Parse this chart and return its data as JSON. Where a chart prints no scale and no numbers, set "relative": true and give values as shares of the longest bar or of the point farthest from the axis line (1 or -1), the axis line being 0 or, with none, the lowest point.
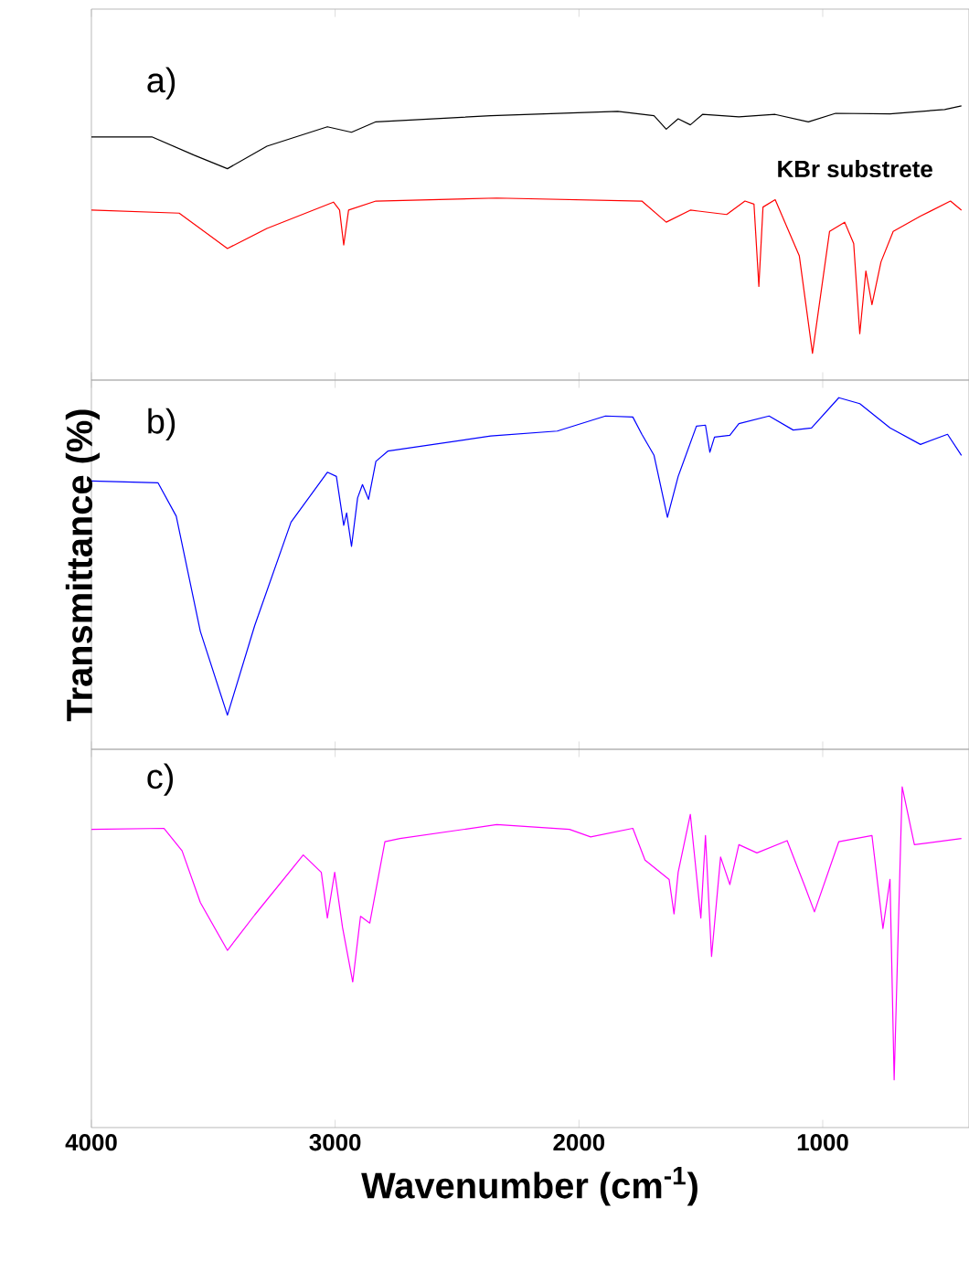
{
  "chart_data": [
    {
      "type": "line",
      "relative": true,
      "xlim": [
        4000,
        400
      ],
      "xticks": [
        4000,
        3000,
        2000,
        1000
      ],
      "tick_labels": false,
      "annotations": [
        "a)"
      ],
      "series": [
        {
          "name": "KBr substrete",
          "color": "#000000",
          "x": [
            4000,
            3752,
            3578,
            3442,
            3280,
            3032,
            2933,
            2833,
            2362,
            1841,
            1692,
            1642,
            1593,
            1543,
            1493,
            1344,
            1195,
            1059,
            947,
            724,
            500,
            431
          ],
          "values": [
            0.887,
            0.887,
            0.82,
            0.771,
            0.853,
            0.924,
            0.904,
            0.942,
            0.964,
            0.98,
            0.964,
            0.915,
            0.953,
            0.931,
            0.969,
            0.96,
            0.969,
            0.942,
            0.973,
            0.971,
            0.987,
            1.0
          ]
        },
        {
          "color": "#ff0000",
          "x": [
            4000,
            3640,
            3442,
            3280,
            3007,
            2982,
            2965,
            2945,
            2833,
            2337,
            1742,
            1642,
            1543,
            1394,
            1319,
            1282,
            1262,
            1245,
            1195,
            1096,
            1042,
            972,
            910,
            873,
            848,
            823,
            798,
            761,
            711,
            599,
            476,
            431
          ],
          "values": [
            0.62,
            0.609,
            0.48,
            0.553,
            0.649,
            0.62,
            0.493,
            0.62,
            0.653,
            0.664,
            0.653,
            0.576,
            0.62,
            0.604,
            0.653,
            0.642,
            0.342,
            0.631,
            0.658,
            0.453,
            0.098,
            0.542,
            0.576,
            0.498,
            0.169,
            0.398,
            0.275,
            0.431,
            0.542,
            0.598,
            0.653,
            0.62
          ]
        }
      ]
    },
    {
      "type": "line",
      "relative": true,
      "xlim": [
        4000,
        400
      ],
      "xticks": [
        4000,
        3000,
        2000,
        1000
      ],
      "tick_labels": false,
      "ylabel": "Transmittance (%)",
      "annotations": [
        "b)"
      ],
      "series": [
        {
          "color": "#0000ff",
          "x": [
            4000,
            3727,
            3652,
            3553,
            3442,
            3330,
            3181,
            3032,
            2995,
            2965,
            2953,
            2933,
            2908,
            2888,
            2863,
            2833,
            2784,
            2362,
            2089,
            1891,
            1779,
            1742,
            1692,
            1637,
            1593,
            1518,
            1481,
            1463,
            1444,
            1381,
            1344,
            1220,
            1121,
            1046,
            934,
            848,
            724,
            599,
            488,
            431
          ],
          "values": [
            0.763,
            0.758,
            0.663,
            0.335,
            0.097,
            0.352,
            0.646,
            0.788,
            0.776,
            0.637,
            0.672,
            0.577,
            0.715,
            0.753,
            0.711,
            0.819,
            0.848,
            0.891,
            0.905,
            0.948,
            0.945,
            0.896,
            0.836,
            0.66,
            0.776,
            0.919,
            0.922,
            0.845,
            0.888,
            0.893,
            0.926,
            0.948,
            0.908,
            0.914,
            1.0,
            0.983,
            0.914,
            0.867,
            0.896,
            0.836
          ]
        }
      ]
    },
    {
      "type": "line",
      "relative": true,
      "xlim": [
        4000,
        400
      ],
      "xticks": [
        4000,
        3000,
        2000,
        1000
      ],
      "tick_labels": "x",
      "xlabel": "Wavenumber (cm$^{-1}$)",
      "annotations": [
        "c)"
      ],
      "series": [
        {
          "color": "#ff00ff",
          "x": [
            4000,
            3702,
            3628,
            3553,
            3442,
            3330,
            3131,
            3057,
            3032,
            3002,
            2970,
            2928,
            2896,
            2858,
            2796,
            2734,
            2337,
            2039,
            1952,
            1779,
            1729,
            1630,
            1610,
            1593,
            1543,
            1500,
            1481,
            1456,
            1419,
            1381,
            1344,
            1270,
            1146,
            1071,
            1034,
            934,
            798,
            753,
            724,
            707,
            674,
            624,
            431
          ],
          "values": [
            0.875,
            0.878,
            0.812,
            0.66,
            0.52,
            0.624,
            0.8,
            0.749,
            0.615,
            0.749,
            0.588,
            0.427,
            0.62,
            0.6,
            0.839,
            0.848,
            0.889,
            0.875,
            0.853,
            0.878,
            0.785,
            0.728,
            0.627,
            0.749,
            0.919,
            0.615,
            0.857,
            0.502,
            0.794,
            0.713,
            0.83,
            0.806,
            0.842,
            0.704,
            0.633,
            0.839,
            0.857,
            0.584,
            0.728,
            0.14,
            1.0,
            0.83,
            0.848
          ]
        }
      ]
    }
  ]
}
